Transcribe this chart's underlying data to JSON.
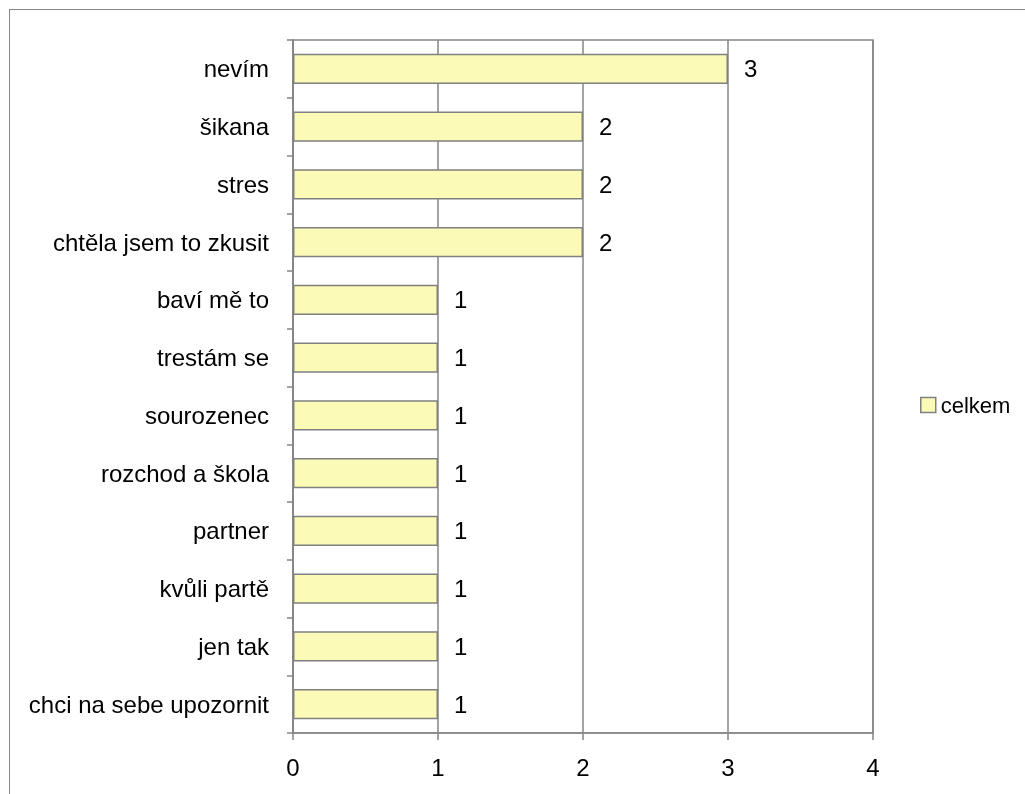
{
  "chart_data": {
    "type": "bar",
    "orientation": "horizontal",
    "categories": [
      "nevím",
      "šikana",
      "stres",
      "chtěla jsem to zkusit",
      "baví mě to",
      "trestám se",
      "sourozenec",
      "rozchod a škola",
      "partner",
      "kvůli partě",
      "jen tak",
      "chci na sebe upozornit"
    ],
    "series": [
      {
        "name": "celkem",
        "color": "#fbfbb7",
        "values": [
          3,
          2,
          2,
          2,
          1,
          1,
          1,
          1,
          1,
          1,
          1,
          1
        ]
      }
    ],
    "xlim": [
      0,
      4
    ],
    "xticks": [
      0,
      1,
      2,
      3,
      4
    ],
    "grid": "x",
    "legend": "right",
    "data_labels": true
  }
}
